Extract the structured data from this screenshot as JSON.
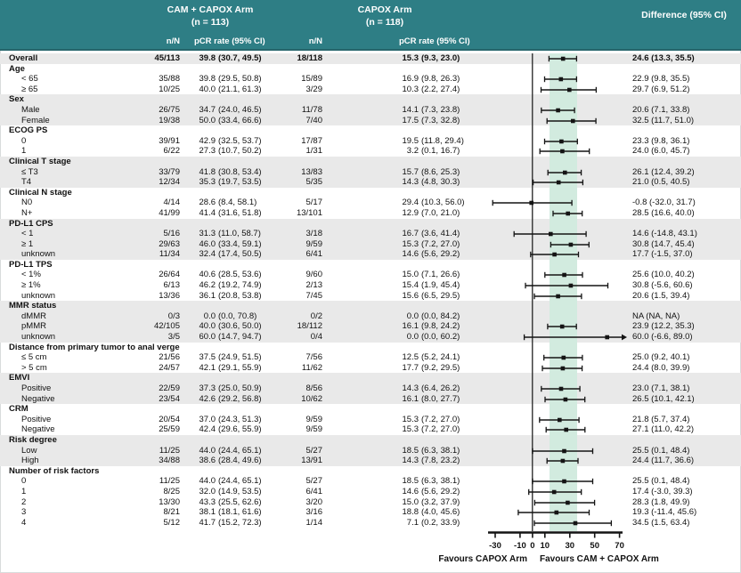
{
  "header": {
    "arm1_title": "CAM + CAPOX Arm",
    "arm1_n": "(n = 113)",
    "arm2_title": "CAPOX Arm",
    "arm2_n": "(n = 118)",
    "col_nn": "n/N",
    "col_pcr": "pCR rate (95% CI)",
    "diff_title": "Difference (95% CI)"
  },
  "colors": {
    "header_bg": "#2e7e85",
    "header_text": "#ffffff",
    "stripe": "#e9e9e9",
    "band": "#d2ebdf",
    "zero_line": "#3f3f3f",
    "ci_line": "#141414"
  },
  "chart_data": {
    "type": "table",
    "subtype": "forest-plot",
    "columns": [
      "Subgroup",
      "n/N (CAM + CAPOX Arm)",
      "pCR rate (95% CI) (CAM + CAPOX Arm)",
      "n/N (CAPOX Arm)",
      "pCR rate (95% CI) (CAPOX Arm)",
      "Difference (95% CI)"
    ],
    "axis": {
      "ticks": [
        -30,
        -10,
        0,
        10,
        30,
        50,
        70
      ],
      "xmin": -40,
      "xmax": 76,
      "zero_line": 0,
      "shaded_band": [
        13.3,
        35.5
      ],
      "favours_left": "Favours CAPOX Arm",
      "favours_right": "Favours CAM + CAPOX Arm"
    },
    "rows": [
      {
        "label": "Overall",
        "type": "data",
        "bold": true,
        "nn1": "45/113",
        "pcr1": "39.8 (30.7, 49.5)",
        "nn2": "18/118",
        "pcr2": "15.3 (9.3, 23.0)",
        "diff": "24.6 (13.3, 35.5)",
        "est": 24.6,
        "lo": 13.3,
        "hi": 35.5
      },
      {
        "label": "Age",
        "type": "section"
      },
      {
        "label": "< 65",
        "type": "data",
        "indent": true,
        "nn1": "35/88",
        "pcr1": "39.8 (29.5, 50.8)",
        "nn2": "15/89",
        "pcr2": "16.9 (9.8, 26.3)",
        "diff": "22.9 (9.8, 35.5)",
        "est": 22.9,
        "lo": 9.8,
        "hi": 35.5
      },
      {
        "label": "≥ 65",
        "type": "data",
        "indent": true,
        "nn1": "10/25",
        "pcr1": "40.0 (21.1, 61.3)",
        "nn2": "3/29",
        "pcr2": "10.3 (2.2, 27.4)",
        "diff": "29.7 (6.9, 51.2)",
        "est": 29.7,
        "lo": 6.9,
        "hi": 51.2
      },
      {
        "label": "Sex",
        "type": "section"
      },
      {
        "label": "Male",
        "type": "data",
        "indent": true,
        "nn1": "26/75",
        "pcr1": "34.7 (24.0, 46.5)",
        "nn2": "11/78",
        "pcr2": "14.1 (7.3, 23.8)",
        "diff": "20.6 (7.1, 33.8)",
        "est": 20.6,
        "lo": 7.1,
        "hi": 33.8
      },
      {
        "label": "Female",
        "type": "data",
        "indent": true,
        "nn1": "19/38",
        "pcr1": "50.0 (33.4, 66.6)",
        "nn2": "7/40",
        "pcr2": "17.5 (7.3, 32.8)",
        "diff": "32.5 (11.7, 51.0)",
        "est": 32.5,
        "lo": 11.7,
        "hi": 51.0
      },
      {
        "label": "ECOG PS",
        "type": "section"
      },
      {
        "label": "0",
        "type": "data",
        "indent": true,
        "nn1": "39/91",
        "pcr1": "42.9 (32.5, 53.7)",
        "nn2": "17/87",
        "pcr2": "19.5 (11.8, 29.4)",
        "diff": "23.3 (9.8, 36.1)",
        "est": 23.3,
        "lo": 9.8,
        "hi": 36.1
      },
      {
        "label": "1",
        "type": "data",
        "indent": true,
        "nn1": "6/22",
        "pcr1": "27.3 (10.7, 50.2)",
        "nn2": "1/31",
        "pcr2": "3.2 (0.1, 16.7)",
        "diff": "24.0 (6.0, 45.7)",
        "est": 24.0,
        "lo": 6.0,
        "hi": 45.7
      },
      {
        "label": "Clinical T stage",
        "type": "section"
      },
      {
        "label": "≤ T3",
        "type": "data",
        "indent": true,
        "nn1": "33/79",
        "pcr1": "41.8 (30.8, 53.4)",
        "nn2": "13/83",
        "pcr2": "15.7 (8.6, 25.3)",
        "diff": "26.1 (12.4, 39.2)",
        "est": 26.1,
        "lo": 12.4,
        "hi": 39.2
      },
      {
        "label": "T4",
        "type": "data",
        "indent": true,
        "nn1": "12/34",
        "pcr1": "35.3 (19.7, 53.5)",
        "nn2": "5/35",
        "pcr2": "14.3 (4.8, 30.3)",
        "diff": "21.0 (0.5, 40.5)",
        "est": 21.0,
        "lo": 0.5,
        "hi": 40.5
      },
      {
        "label": "Clinical N stage",
        "type": "section"
      },
      {
        "label": "N0",
        "type": "data",
        "indent": true,
        "nn1": "4/14",
        "pcr1": "28.6 (8.4, 58.1)",
        "nn2": "5/17",
        "pcr2": "29.4 (10.3, 56.0)",
        "diff": "-0.8 (-32.0, 31.7)",
        "est": -0.8,
        "lo": -32.0,
        "hi": 31.7
      },
      {
        "label": "N+",
        "type": "data",
        "indent": true,
        "nn1": "41/99",
        "pcr1": "41.4 (31.6, 51.8)",
        "nn2": "13/101",
        "pcr2": "12.9 (7.0, 21.0)",
        "diff": "28.5 (16.6, 40.0)",
        "est": 28.5,
        "lo": 16.6,
        "hi": 40.0
      },
      {
        "label": "PD-L1 CPS",
        "type": "section"
      },
      {
        "label": "< 1",
        "type": "data",
        "indent": true,
        "nn1": "5/16",
        "pcr1": "31.3 (11.0, 58.7)",
        "nn2": "3/18",
        "pcr2": "16.7 (3.6, 41.4)",
        "diff": "14.6 (-14.8, 43.1)",
        "est": 14.6,
        "lo": -14.8,
        "hi": 43.1
      },
      {
        "label": "≥ 1",
        "type": "data",
        "indent": true,
        "nn1": "29/63",
        "pcr1": "46.0 (33.4, 59.1)",
        "nn2": "9/59",
        "pcr2": "15.3 (7.2, 27.0)",
        "diff": "30.8 (14.7, 45.4)",
        "est": 30.8,
        "lo": 14.7,
        "hi": 45.4
      },
      {
        "label": "unknown",
        "type": "data",
        "indent": true,
        "nn1": "11/34",
        "pcr1": "32.4 (17.4, 50.5)",
        "nn2": "6/41",
        "pcr2": "14.6 (5.6, 29.2)",
        "diff": "17.7 (-1.5, 37.0)",
        "est": 17.7,
        "lo": -1.5,
        "hi": 37.0
      },
      {
        "label": "PD-L1 TPS",
        "type": "section"
      },
      {
        "label": "< 1%",
        "type": "data",
        "indent": true,
        "nn1": "26/64",
        "pcr1": "40.6 (28.5, 53.6)",
        "nn2": "9/60",
        "pcr2": "15.0 (7.1, 26.6)",
        "diff": "25.6 (10.0, 40.2)",
        "est": 25.6,
        "lo": 10.0,
        "hi": 40.2
      },
      {
        "label": "≥ 1%",
        "type": "data",
        "indent": true,
        "nn1": "6/13",
        "pcr1": "46.2 (19.2, 74.9)",
        "nn2": "2/13",
        "pcr2": "15.4 (1.9, 45.4)",
        "diff": "30.8 (-5.6, 60.6)",
        "est": 30.8,
        "lo": -5.6,
        "hi": 60.6
      },
      {
        "label": "unknown",
        "type": "data",
        "indent": true,
        "nn1": "13/36",
        "pcr1": "36.1 (20.8, 53.8)",
        "nn2": "7/45",
        "pcr2": "15.6 (6.5, 29.5)",
        "diff": "20.6 (1.5, 39.4)",
        "est": 20.6,
        "lo": 1.5,
        "hi": 39.4
      },
      {
        "label": "MMR status",
        "type": "section"
      },
      {
        "label": "dMMR",
        "type": "data",
        "indent": true,
        "nn1": "0/3",
        "pcr1": "0.0 (0.0, 70.8)",
        "nn2": "0/2",
        "pcr2": "0.0 (0.0, 84.2)",
        "diff": "NA (NA, NA)",
        "est": null,
        "lo": null,
        "hi": null
      },
      {
        "label": "pMMR",
        "type": "data",
        "indent": true,
        "nn1": "42/105",
        "pcr1": "40.0 (30.6, 50.0)",
        "nn2": "18/112",
        "pcr2": "16.1 (9.8, 24.2)",
        "diff": "23.9 (12.2, 35.3)",
        "est": 23.9,
        "lo": 12.2,
        "hi": 35.3
      },
      {
        "label": "unknown",
        "type": "data",
        "indent": true,
        "nn1": "3/5",
        "pcr1": "60.0 (14.7, 94.7)",
        "nn2": "0/4",
        "pcr2": "0.0 (0.0, 60.2)",
        "diff": "60.0 (-6.6, 89.0)",
        "est": 60.0,
        "lo": -6.6,
        "hi": 89.0
      },
      {
        "label": "Distance from primary tumor to anal verge",
        "type": "section"
      },
      {
        "label": "≤ 5 cm",
        "type": "data",
        "indent": true,
        "nn1": "21/56",
        "pcr1": "37.5 (24.9, 51.5)",
        "nn2": "7/56",
        "pcr2": "12.5 (5.2, 24.1)",
        "diff": "25.0 (9.2, 40.1)",
        "est": 25.0,
        "lo": 9.2,
        "hi": 40.1
      },
      {
        "label": "> 5 cm",
        "type": "data",
        "indent": true,
        "nn1": "24/57",
        "pcr1": "42.1 (29.1, 55.9)",
        "nn2": "11/62",
        "pcr2": "17.7 (9.2, 29.5)",
        "diff": "24.4 (8.0, 39.9)",
        "est": 24.4,
        "lo": 8.0,
        "hi": 39.9
      },
      {
        "label": "EMVI",
        "type": "section"
      },
      {
        "label": "Positive",
        "type": "data",
        "indent": true,
        "nn1": "22/59",
        "pcr1": "37.3 (25.0, 50.9)",
        "nn2": "8/56",
        "pcr2": "14.3 (6.4, 26.2)",
        "diff": "23.0 (7.1, 38.1)",
        "est": 23.0,
        "lo": 7.1,
        "hi": 38.1
      },
      {
        "label": "Negative",
        "type": "data",
        "indent": true,
        "nn1": "23/54",
        "pcr1": "42.6 (29.2, 56.8)",
        "nn2": "10/62",
        "pcr2": "16.1 (8.0, 27.7)",
        "diff": "26.5 (10.1, 42.1)",
        "est": 26.5,
        "lo": 10.1,
        "hi": 42.1
      },
      {
        "label": "CRM",
        "type": "section"
      },
      {
        "label": "Positive",
        "type": "data",
        "indent": true,
        "nn1": "20/54",
        "pcr1": "37.0 (24.3, 51.3)",
        "nn2": "9/59",
        "pcr2": "15.3 (7.2, 27.0)",
        "diff": "21.8 (5.7, 37.4)",
        "est": 21.8,
        "lo": 5.7,
        "hi": 37.4
      },
      {
        "label": "Negative",
        "type": "data",
        "indent": true,
        "nn1": "25/59",
        "pcr1": "42.4 (29.6, 55.9)",
        "nn2": "9/59",
        "pcr2": "15.3 (7.2, 27.0)",
        "diff": "27.1 (11.0, 42.2)",
        "est": 27.1,
        "lo": 11.0,
        "hi": 42.2
      },
      {
        "label": "Risk degree",
        "type": "section"
      },
      {
        "label": "Low",
        "type": "data",
        "indent": true,
        "nn1": "11/25",
        "pcr1": "44.0 (24.4, 65.1)",
        "nn2": "5/27",
        "pcr2": "18.5 (6.3, 38.1)",
        "diff": "25.5 (0.1, 48.4)",
        "est": 25.5,
        "lo": 0.1,
        "hi": 48.4
      },
      {
        "label": "High",
        "type": "data",
        "indent": true,
        "nn1": "34/88",
        "pcr1": "38.6 (28.4, 49.6)",
        "nn2": "13/91",
        "pcr2": "14.3 (7.8, 23.2)",
        "diff": "24.4 (11.7, 36.6)",
        "est": 24.4,
        "lo": 11.7,
        "hi": 36.6
      },
      {
        "label": "Number of risk factors",
        "type": "section"
      },
      {
        "label": "0",
        "type": "data",
        "indent": true,
        "nn1": "11/25",
        "pcr1": "44.0 (24.4, 65.1)",
        "nn2": "5/27",
        "pcr2": "18.5 (6.3, 38.1)",
        "diff": "25.5 (0.1, 48.4)",
        "est": 25.5,
        "lo": 0.1,
        "hi": 48.4
      },
      {
        "label": "1",
        "type": "data",
        "indent": true,
        "nn1": "8/25",
        "pcr1": "32.0 (14.9, 53.5)",
        "nn2": "6/41",
        "pcr2": "14.6 (5.6, 29.2)",
        "diff": "17.4 (-3.0, 39.3)",
        "est": 17.4,
        "lo": -3.0,
        "hi": 39.3
      },
      {
        "label": "2",
        "type": "data",
        "indent": true,
        "nn1": "13/30",
        "pcr1": "43.3 (25.5, 62.6)",
        "nn2": "3/20",
        "pcr2": "15.0 (3.2, 37.9)",
        "diff": "28.3 (1.8, 49.9)",
        "est": 28.3,
        "lo": 1.8,
        "hi": 49.9
      },
      {
        "label": "3",
        "type": "data",
        "indent": true,
        "nn1": "8/21",
        "pcr1": "38.1 (18.1, 61.6)",
        "nn2": "3/16",
        "pcr2": "18.8 (4.0, 45.6)",
        "diff": "19.3 (-11.4, 45.6)",
        "est": 19.3,
        "lo": -11.4,
        "hi": 45.6
      },
      {
        "label": "4",
        "type": "data",
        "indent": true,
        "nn1": "5/12",
        "pcr1": "41.7 (15.2, 72.3)",
        "nn2": "1/14",
        "pcr2": "7.1 (0.2, 33.9)",
        "diff": "34.5 (1.5, 63.4)",
        "est": 34.5,
        "lo": 1.5,
        "hi": 63.4
      }
    ]
  }
}
